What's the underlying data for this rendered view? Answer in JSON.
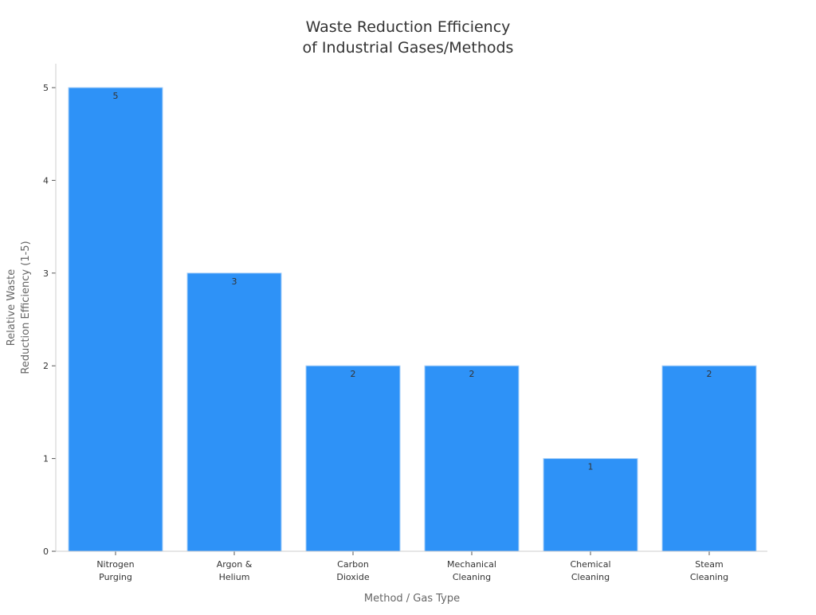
{
  "chart_data": {
    "type": "bar",
    "title": [
      "Waste Reduction Efficiency",
      "of Industrial Gases/Methods"
    ],
    "xlabel": "Method / Gas Type",
    "ylabel": [
      "Relative Waste",
      "Reduction Efficiency (1-5)"
    ],
    "categories": [
      [
        "Nitrogen",
        "Purging"
      ],
      [
        "Argon &",
        "Helium"
      ],
      [
        "Carbon",
        "Dioxide"
      ],
      [
        "Mechanical",
        "Cleaning"
      ],
      [
        "Chemical",
        "Cleaning"
      ],
      [
        "Steam",
        "Cleaning"
      ]
    ],
    "values": [
      5,
      3,
      2,
      2,
      1,
      2
    ],
    "data_labels": [
      "5",
      "3",
      "2",
      "2",
      "1",
      "2"
    ],
    "yticks": [
      0,
      1,
      2,
      3,
      4,
      5
    ],
    "ylim": [
      0,
      5.26
    ],
    "grid": false,
    "bar_color": "#2e92f7",
    "bar_edge_color": "#a8d0f8"
  }
}
